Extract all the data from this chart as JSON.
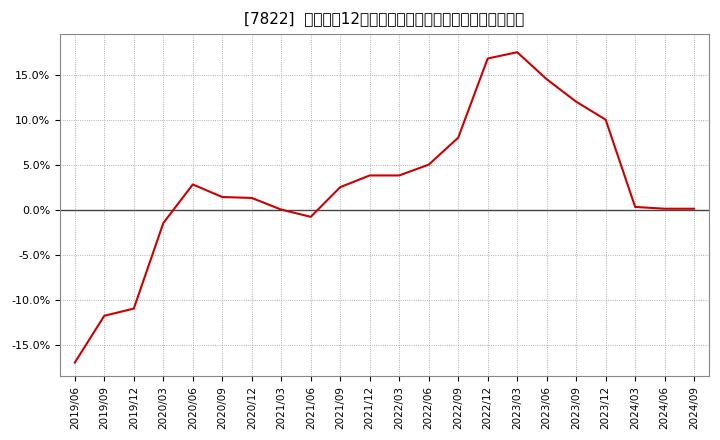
{
  "title": "[7822]  売上高の12か月移動合計の対前年同期増減率の推移",
  "line_color": "#cc0000",
  "background_color": "#ffffff",
  "plot_bg_color": "#ffffff",
  "grid_color": "#999999",
  "zero_line_color": "#444444",
  "ylim": [
    -0.185,
    0.195
  ],
  "yticks": [
    -0.15,
    -0.1,
    -0.05,
    0.0,
    0.05,
    0.1,
    0.15
  ],
  "dates": [
    "2019/06",
    "2019/09",
    "2019/12",
    "2020/03",
    "2020/06",
    "2020/09",
    "2020/12",
    "2021/03",
    "2021/06",
    "2021/09",
    "2021/12",
    "2022/03",
    "2022/06",
    "2022/09",
    "2022/12",
    "2023/03",
    "2023/06",
    "2023/09",
    "2023/12",
    "2024/03",
    "2024/06",
    "2024/09"
  ],
  "values": [
    -0.17,
    -0.118,
    -0.11,
    -0.015,
    0.028,
    0.014,
    0.013,
    -0.0,
    -0.008,
    0.025,
    0.038,
    0.038,
    0.05,
    0.08,
    0.168,
    0.175,
    0.145,
    0.12,
    0.1,
    0.003,
    0.001,
    0.001
  ],
  "title_fontsize": 11,
  "tick_fontsize": 7.5,
  "ytick_fontsize": 8
}
